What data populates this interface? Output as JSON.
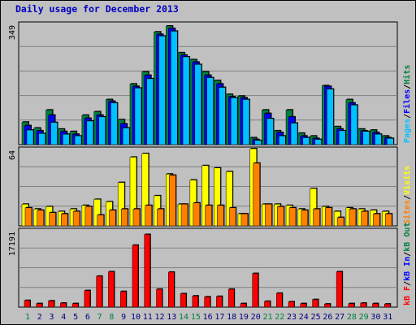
{
  "title": "Daily usage for December 2013",
  "colors": {
    "background": "#c0c0c0",
    "plot": "#c0c0c0",
    "grid": "#808080",
    "hits": "#008040",
    "files": "#0000ff",
    "pages": "#00c0ff",
    "visits": "#ffff00",
    "sites": "#ff8000",
    "kb_in": "#0000ff",
    "kb_out": "#008040",
    "kb_f": "#ff0000",
    "day_weekend": "#008040",
    "day_weekday": "#000080"
  },
  "chart_data": [
    {
      "type": "bar",
      "name": "hits-files-pages",
      "categories": [
        "1",
        "2",
        "3",
        "4",
        "5",
        "6",
        "7",
        "8",
        "9",
        "10",
        "11",
        "12",
        "13",
        "14",
        "15",
        "16",
        "17",
        "18",
        "19",
        "20",
        "21",
        "22",
        "23",
        "24",
        "25",
        "26",
        "27",
        "28",
        "29",
        "30",
        "31"
      ],
      "max_label": "349",
      "ylim": [
        0,
        349
      ],
      "legend": [
        {
          "label": "Pages",
          "color": "#00c0ff"
        },
        {
          "label": "Files",
          "color": "#0000ff"
        },
        {
          "label": "Hits",
          "color": "#008040"
        }
      ],
      "series": [
        {
          "name": "Hits",
          "color": "#008040",
          "values": [
            65,
            48,
            100,
            45,
            38,
            85,
            95,
            130,
            72,
            175,
            210,
            325,
            342,
            265,
            245,
            210,
            185,
            145,
            140,
            20,
            100,
            40,
            100,
            33,
            25,
            170,
            52,
            130,
            45,
            42,
            25
          ]
        },
        {
          "name": "Files",
          "color": "#0000ff",
          "values": [
            55,
            40,
            85,
            38,
            30,
            76,
            85,
            125,
            60,
            168,
            200,
            318,
            335,
            258,
            238,
            200,
            175,
            138,
            135,
            15,
            90,
            35,
            80,
            25,
            18,
            168,
            45,
            120,
            40,
            35,
            20
          ]
        },
        {
          "name": "Pages",
          "color": "#00c0ff",
          "values": [
            42,
            32,
            64,
            30,
            25,
            68,
            80,
            120,
            48,
            163,
            190,
            313,
            327,
            253,
            231,
            193,
            165,
            135,
            130,
            12,
            75,
            25,
            62,
            20,
            15,
            160,
            40,
            114,
            38,
            30,
            18
          ]
        }
      ]
    },
    {
      "type": "bar",
      "name": "visits-sites",
      "categories": [
        "1",
        "2",
        "3",
        "4",
        "5",
        "6",
        "7",
        "8",
        "9",
        "10",
        "11",
        "12",
        "13",
        "14",
        "15",
        "16",
        "17",
        "18",
        "19",
        "20",
        "21",
        "22",
        "23",
        "24",
        "25",
        "26",
        "27",
        "28",
        "29",
        "30",
        "31"
      ],
      "max_label": "64",
      "ylim": [
        0,
        64
      ],
      "legend": [
        {
          "label": "Sites",
          "color": "#ff8000"
        },
        {
          "label": "Visits",
          "color": "#ffff00"
        }
      ],
      "series": [
        {
          "name": "Visits",
          "color": "#ffff00",
          "values": [
            18,
            14,
            16,
            12,
            14,
            17,
            22,
            20,
            36,
            57,
            60,
            25,
            43,
            18,
            38,
            50,
            48,
            45,
            10,
            64,
            18,
            18,
            17,
            14,
            31,
            16,
            12,
            15,
            14,
            13,
            12
          ]
        },
        {
          "name": "Sites",
          "color": "#ff8000",
          "values": [
            15,
            13,
            11,
            10,
            12,
            16,
            9,
            13,
            14,
            14,
            17,
            14,
            42,
            18,
            19,
            17,
            17,
            15,
            10,
            52,
            18,
            16,
            15,
            13,
            14,
            15,
            7,
            14,
            12,
            10,
            10
          ]
        }
      ]
    },
    {
      "type": "bar",
      "name": "kbytes",
      "categories": [
        "1",
        "2",
        "3",
        "4",
        "5",
        "6",
        "7",
        "8",
        "9",
        "10",
        "11",
        "12",
        "13",
        "14",
        "15",
        "16",
        "17",
        "18",
        "19",
        "20",
        "21",
        "22",
        "23",
        "24",
        "25",
        "26",
        "27",
        "28",
        "29",
        "30",
        "31"
      ],
      "max_label": "17191",
      "ylim": [
        0,
        17191
      ],
      "legend": [
        {
          "label": "kB F",
          "color": "#ff0000"
        },
        {
          "label": "kB In",
          "color": "#0000ff"
        },
        {
          "label": "kB Out",
          "color": "#008040"
        }
      ],
      "series": [
        {
          "name": "kB F",
          "color": "#ff0000",
          "values": [
            1500,
            800,
            1400,
            900,
            800,
            3700,
            6900,
            7900,
            3500,
            13800,
            16200,
            4000,
            7800,
            3000,
            2500,
            2300,
            2400,
            4000,
            800,
            7500,
            1300,
            3100,
            1200,
            800,
            1700,
            700,
            7900,
            800,
            900,
            800,
            700
          ]
        }
      ]
    }
  ]
}
